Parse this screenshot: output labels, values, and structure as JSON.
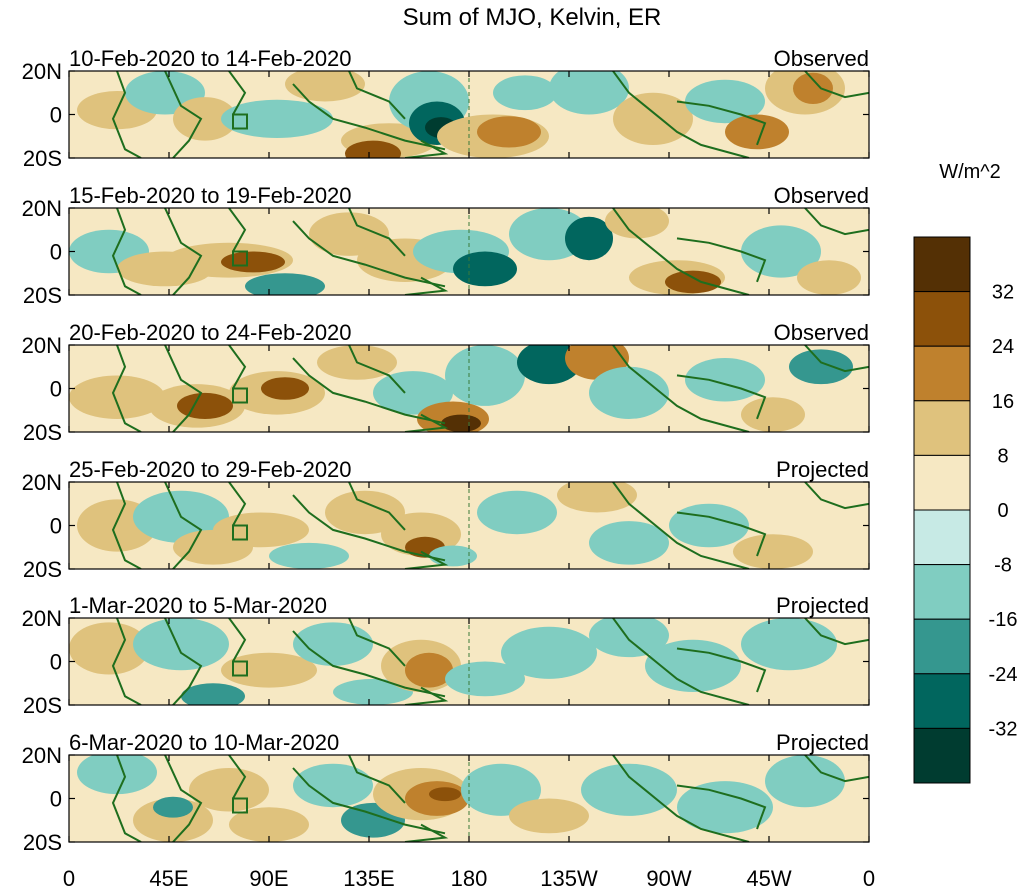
{
  "title": "Sum of MJO, Kelvin, ER",
  "colorbar": {
    "unit": "W/m^2",
    "tick_labels": [
      "32",
      "24",
      "16",
      "8",
      "0",
      "-8",
      "-16",
      "-24",
      "-32"
    ],
    "colors": [
      "#543005",
      "#8c510a",
      "#bf812d",
      "#dfc27d",
      "#f6e8c3",
      "#c7eae5",
      "#80cdc1",
      "#35978f",
      "#01665e",
      "#003c30"
    ]
  },
  "lat_labels": [
    "20N",
    "0",
    "20S"
  ],
  "lon_labels": [
    "0",
    "45E",
    "90E",
    "135E",
    "180",
    "135W",
    "90W",
    "45W",
    "0"
  ],
  "panels": [
    {
      "date_range": "10-Feb-2020 to 14-Feb-2020",
      "status": "Observed"
    },
    {
      "date_range": "15-Feb-2020 to 19-Feb-2020",
      "status": "Observed"
    },
    {
      "date_range": "20-Feb-2020 to 24-Feb-2020",
      "status": "Observed"
    },
    {
      "date_range": "25-Feb-2020 to 29-Feb-2020",
      "status": "Projected"
    },
    {
      "date_range": "1-Mar-2020 to 5-Mar-2020",
      "status": "Projected"
    },
    {
      "date_range": "6-Mar-2020 to 10-Mar-2020",
      "status": "Projected"
    }
  ],
  "colors": {
    "coastline": "#1e6e1e",
    "dateline": "#3a7a3a"
  }
}
